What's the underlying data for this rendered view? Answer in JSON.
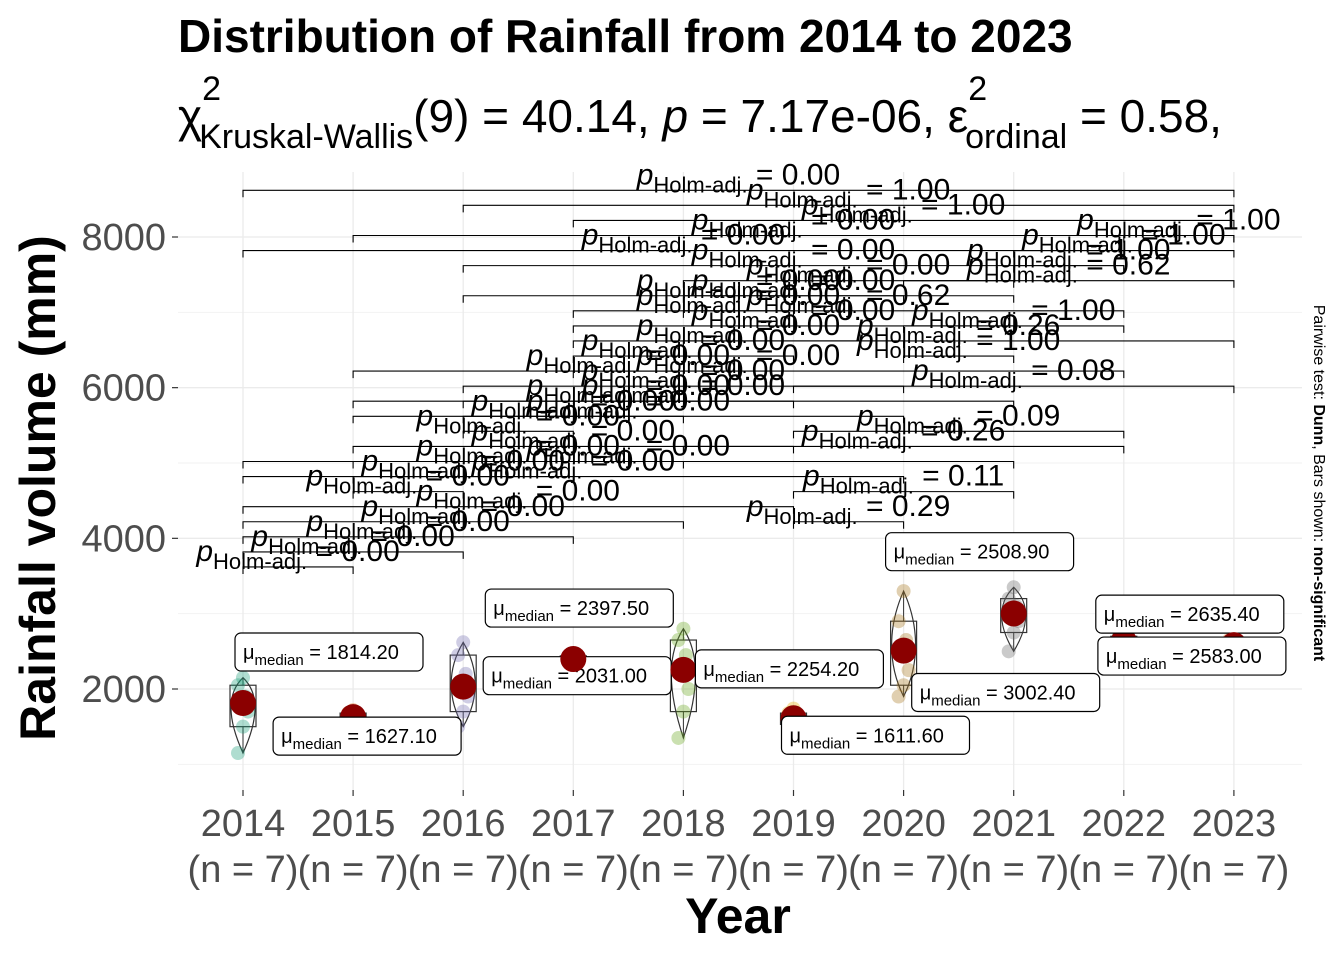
{
  "chart_data": {
    "type": "violin",
    "title": "Distribution of Rainfall from 2014 to 2023",
    "subtitle": {
      "stat_symbol": "χ",
      "stat_sup": "2",
      "stat_sub": "Kruskal-Wallis",
      "stat_rest": "(9) = 40.14, ",
      "p_symbol": "p",
      "p_rest": " = 7.17e-06, ",
      "eff_symbol": "ε",
      "eff_sup": "2",
      "eff_sub": "ordinal",
      "eff_rest": " = 0.58,"
    },
    "xlabel": "Year",
    "ylabel": "Rainfall volume (mm)",
    "caption_prefix": "Pairwise test: ",
    "caption_test": "Dunn",
    "caption_mid": ", Bars shown: ",
    "caption_bars": "non-significant",
    "ylim": [
      700,
      8700
    ],
    "yticks": [
      2000,
      4000,
      6000,
      8000
    ],
    "grid": true,
    "categories": [
      "2014",
      "2015",
      "2016",
      "2017",
      "2018",
      "2019",
      "2020",
      "2021",
      "2022",
      "2023"
    ],
    "n_label": "(n = 7)",
    "colors": [
      "#1b9e77",
      "#d95f02",
      "#7570b3",
      "#e7298a",
      "#66a61e",
      "#e6ab02",
      "#a6761d",
      "#666666",
      "#1b9e77",
      "#d95f02"
    ],
    "median_color": "#8b0000",
    "medians": [
      1814.2,
      1627.1,
      2031.0,
      2397.5,
      2254.2,
      1611.6,
      2508.9,
      3002.4,
      2635.4,
      2583.0
    ],
    "median_labels": [
      "1814.20",
      "1627.10",
      "2031.00",
      "2397.50",
      "2254.20",
      "1611.60",
      "2508.90",
      "3002.40",
      "2635.40",
      "2583.00"
    ],
    "median_symbol": "μ",
    "median_sub": "median",
    "points": [
      [
        1150,
        1500,
        1700,
        1814.2,
        1900,
        2050,
        2150
      ],
      [
        1550,
        1580,
        1610,
        1627.1,
        1650,
        1680,
        1720
      ],
      [
        1500,
        1700,
        1900,
        2031.0,
        2200,
        2450,
        2620
      ],
      [
        2300,
        2330,
        2370,
        2397.5,
        2410,
        2440,
        2470
      ],
      [
        1350,
        1700,
        2000,
        2254.2,
        2450,
        2650,
        2800
      ],
      [
        1480,
        1530,
        1580,
        1611.6,
        1640,
        1680,
        1740
      ],
      [
        1900,
        2050,
        2250,
        2508.9,
        2650,
        2900,
        3300
      ],
      [
        2500,
        2750,
        2900,
        3002.4,
        3100,
        3200,
        3350
      ],
      [
        2500,
        2560,
        2600,
        2635.4,
        2660,
        2700,
        2780
      ],
      [
        2450,
        2500,
        2550,
        2583.0,
        2610,
        2650,
        2700
      ]
    ],
    "violin_top": [
      2150,
      1720,
      2620,
      2470,
      2800,
      1740,
      3300,
      3350,
      2780,
      2700
    ],
    "violin_bottom": [
      1150,
      1550,
      1500,
      2300,
      1350,
      1480,
      1900,
      2500,
      2500,
      2450
    ],
    "box_q1": [
      1500,
      1580,
      1700,
      2330,
      1700,
      1530,
      2050,
      2750,
      2560,
      2500
    ],
    "box_q3": [
      2050,
      1680,
      2450,
      2440,
      2650,
      1680,
      2900,
      3200,
      2700,
      2650
    ],
    "pairwise": [
      {
        "a": 0,
        "b": 1,
        "y": 3620,
        "label": "0.00"
      },
      {
        "a": 0,
        "b": 2,
        "y": 3820,
        "label": "0.00"
      },
      {
        "a": 0,
        "b": 3,
        "y": 4020,
        "label": "0.00"
      },
      {
        "a": 0,
        "b": 4,
        "y": 4220,
        "label": "0.00"
      },
      {
        "a": 0,
        "b": 5,
        "y": 4420,
        "label": "0.00"
      },
      {
        "a": 1,
        "b": 2,
        "y": 4620,
        "label": "0.00"
      },
      {
        "a": 1,
        "b": 3,
        "y": 4820,
        "label": "0.00"
      },
      {
        "a": 1,
        "b": 4,
        "y": 5020,
        "label": "0.00"
      },
      {
        "a": 1,
        "b": 5,
        "y": 5220,
        "label": "0.00"
      },
      {
        "a": 2,
        "b": 3,
        "y": 5420,
        "label": "0.00"
      },
      {
        "a": 2,
        "b": 4,
        "y": 5620,
        "label": "0.00"
      },
      {
        "a": 2,
        "b": 5,
        "y": 5820,
        "label": "0.00"
      },
      {
        "a": 2,
        "b": 6,
        "y": 6020,
        "label": "0.00"
      },
      {
        "a": 3,
        "b": 4,
        "y": 6220,
        "label": "0.00"
      },
      {
        "a": 3,
        "b": 5,
        "y": 6420,
        "label": "0.00"
      },
      {
        "a": 3,
        "b": 6,
        "y": 6620,
        "label": "0.00"
      },
      {
        "a": 3,
        "b": 7,
        "y": 6820,
        "label": "0.00"
      },
      {
        "a": 4,
        "b": 5,
        "y": 7020,
        "label": "0.00"
      },
      {
        "a": 4,
        "b": 6,
        "y": 7220,
        "label": "0.00"
      },
      {
        "a": 4,
        "b": 7,
        "y": 7420,
        "label": "0.00"
      },
      {
        "a": 5,
        "b": 6,
        "y": 4220,
        "label": "0.29"
      },
      {
        "a": 5,
        "b": 7,
        "y": 4620,
        "label": "0.11"
      },
      {
        "a": 5,
        "b": 8,
        "y": 5420,
        "label": "0.09"
      },
      {
        "a": 5,
        "b": 9,
        "y": 6020,
        "label": "0.08"
      },
      {
        "a": 6,
        "b": 7,
        "y": 6420,
        "label": "1.00"
      },
      {
        "a": 6,
        "b": 8,
        "y": 6820,
        "label": "1.00"
      },
      {
        "a": 6,
        "b": 9,
        "y": 7420,
        "label": "0.62"
      },
      {
        "a": 7,
        "b": 8,
        "y": 7620,
        "label": "1.00"
      },
      {
        "a": 7,
        "b": 9,
        "y": 7820,
        "label": "1.00"
      },
      {
        "a": 8,
        "b": 9,
        "y": 8020,
        "label": "1.00"
      },
      {
        "a": 4,
        "b": 8,
        "y": 5220,
        "label": "0.26"
      },
      {
        "a": 4,
        "b": 9,
        "y": 6620,
        "label": "0.26"
      },
      {
        "a": 3,
        "b": 8,
        "y": 7020,
        "label": "0.62"
      },
      {
        "a": 3,
        "b": 9,
        "y": 8220,
        "label": "1.00"
      },
      {
        "a": 2,
        "b": 7,
        "y": 7220,
        "label": "0.00"
      },
      {
        "a": 2,
        "b": 8,
        "y": 7620,
        "label": "0.00"
      },
      {
        "a": 2,
        "b": 9,
        "y": 8420,
        "label": "1.00"
      },
      {
        "a": 1,
        "b": 6,
        "y": 5620,
        "label": "0.00"
      },
      {
        "a": 1,
        "b": 7,
        "y": 5820,
        "label": "0.00"
      },
      {
        "a": 0,
        "b": 6,
        "y": 4820,
        "label": "0.00"
      },
      {
        "a": 0,
        "b": 7,
        "y": 5020,
        "label": "0.00"
      },
      {
        "a": 1,
        "b": 8,
        "y": 6220,
        "label": "0.00"
      },
      {
        "a": 0,
        "b": 8,
        "y": 7820,
        "label": "0.00"
      },
      {
        "a": 1,
        "b": 9,
        "y": 8020,
        "label": "0.00"
      },
      {
        "a": 0,
        "b": 9,
        "y": 8620,
        "label": "0.00"
      }
    ],
    "pairwise_p_symbol": "p",
    "pairwise_p_sub": "Holm-adj.",
    "pairwise_eq": " = "
  }
}
